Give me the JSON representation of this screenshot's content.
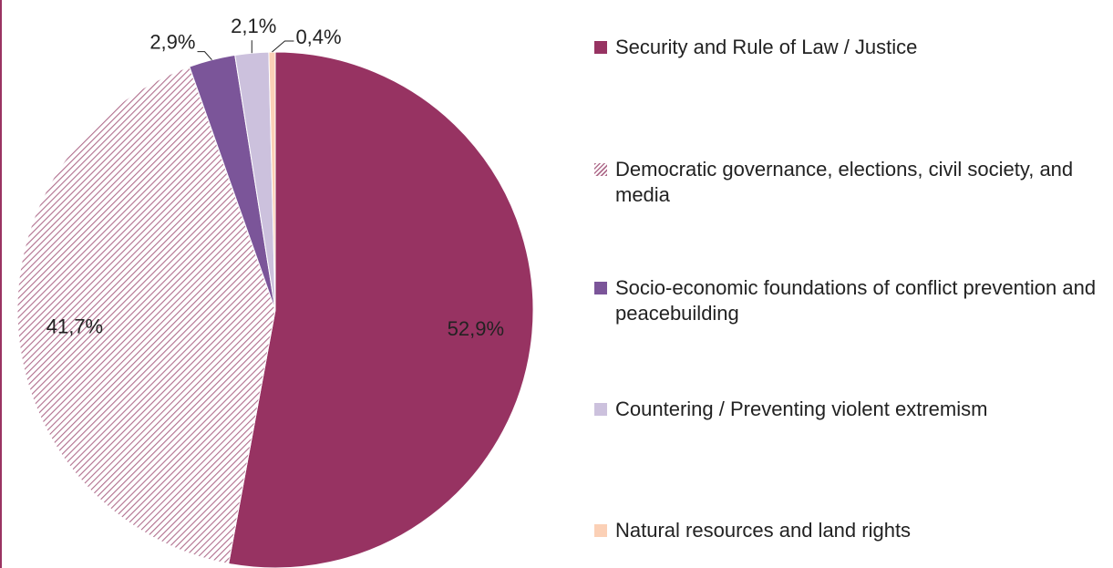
{
  "chart_data": {
    "type": "pie",
    "categories": [
      "Security and Rule of Law / Justice",
      "Democratic governance, elections, civil society,  and media",
      "Socio-economic foundations of conflict prevention and peacebuilding",
      "Countering / Preventing violent extremism",
      "Natural resources and land rights"
    ],
    "values": [
      52.9,
      41.7,
      2.9,
      2.1,
      0.4
    ],
    "value_labels": [
      "52,9%",
      "41,7%",
      "2,9%",
      "2,1%",
      "0,4%"
    ],
    "colors": [
      "#973362",
      "#c58aa6",
      "#7b5599",
      "#ccc1dd",
      "#fbd0b6"
    ],
    "patterns": [
      "solid",
      "diagonal-hatch",
      "solid",
      "solid",
      "solid"
    ],
    "start_angle": "12 o'clock",
    "direction": "clockwise",
    "legend_placement": "right"
  }
}
